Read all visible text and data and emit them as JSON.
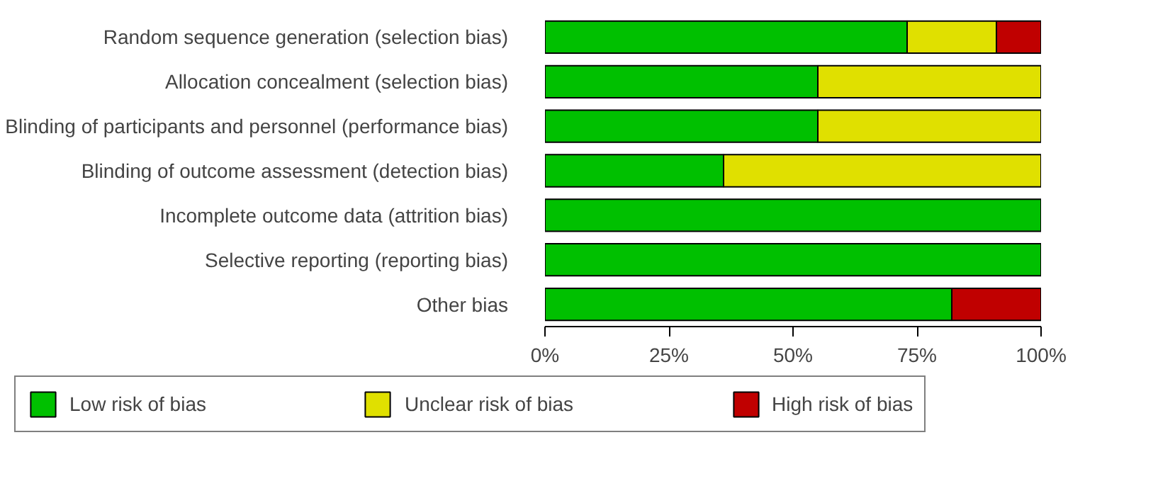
{
  "chart_data": {
    "type": "bar",
    "orientation": "horizontal",
    "stacked": true,
    "categories": [
      "Random sequence generation (selection bias)",
      "Allocation concealment (selection bias)",
      "Blinding of participants and personnel (performance bias)",
      "Blinding of outcome assessment (detection bias)",
      "Incomplete outcome data (attrition bias)",
      "Selective reporting (reporting bias)",
      "Other bias"
    ],
    "series": [
      {
        "name": "Low risk of bias",
        "color": "#00c000",
        "values": [
          73,
          55,
          55,
          36,
          100,
          100,
          82
        ]
      },
      {
        "name": "Unclear risk of bias",
        "color": "#e0e000",
        "values": [
          18,
          45,
          45,
          64,
          null,
          null,
          null
        ]
      },
      {
        "name": "High risk of bias",
        "color": "#c00000",
        "values": [
          9,
          null,
          null,
          null,
          null,
          null,
          18
        ]
      }
    ],
    "xlim": [
      0,
      100
    ],
    "xticks": [
      {
        "value": 0,
        "label": "0%"
      },
      {
        "value": 25,
        "label": "25%"
      },
      {
        "value": 50,
        "label": "50%"
      },
      {
        "value": 75,
        "label": "75%"
      },
      {
        "value": 100,
        "label": "100%"
      }
    ],
    "grid": false,
    "legend": "bottom"
  }
}
